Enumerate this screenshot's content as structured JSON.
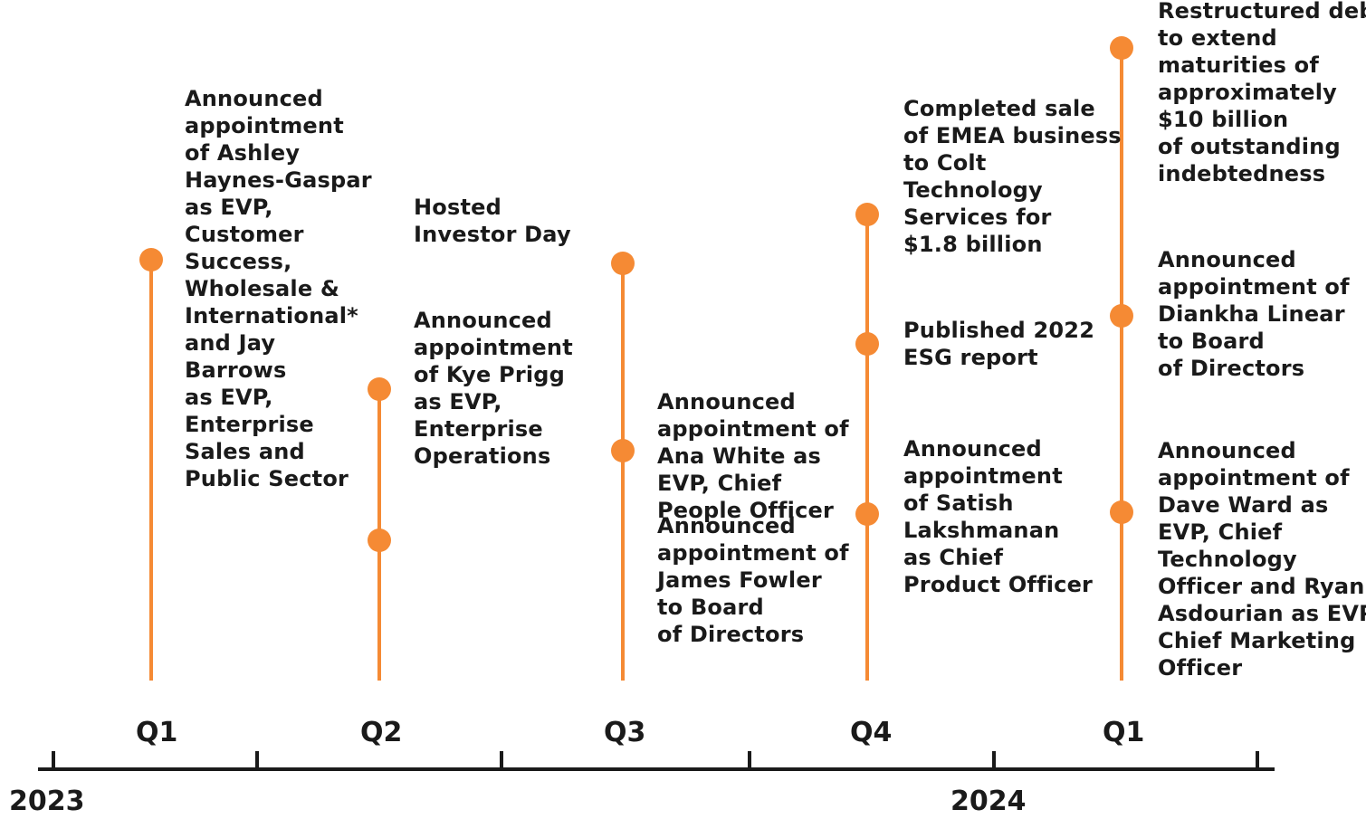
{
  "accent_color": "#F58A34",
  "axis_color": "#1a1a1a",
  "years": [
    "2023",
    "2024"
  ],
  "quarters": [
    "Q1",
    "Q2",
    "Q3",
    "Q4",
    "Q1"
  ],
  "events": [
    {
      "quarter_index": 0,
      "lines": [
        "Announced",
        "appointment",
        "of Ashley",
        "Haynes-Gaspar",
        "as EVP,",
        "Customer",
        "Success,",
        "Wholesale &",
        "International*",
        "and Jay",
        "Barrows",
        "as EVP,",
        "Enterprise",
        "Sales and",
        "Public Sector"
      ]
    },
    {
      "quarter_index": 1,
      "lines": [
        "Announced",
        "appointment",
        "of Kye Prigg",
        "as EVP,",
        "Enterprise",
        "Operations"
      ]
    },
    {
      "quarter_index": 1,
      "lines": [
        "Hosted",
        "Investor Day"
      ]
    },
    {
      "quarter_index": 2,
      "lines": [
        "Announced",
        "appointment of",
        "Ana White as",
        "EVP, Chief",
        "People Officer"
      ]
    },
    {
      "quarter_index": 2,
      "lines": [
        "Announced",
        "appointment of",
        "James Fowler",
        "to Board",
        "of Directors"
      ]
    },
    {
      "quarter_index": 3,
      "lines": [
        "Completed sale",
        "of EMEA business",
        "to Colt",
        "Technology",
        "Services for",
        "$1.8 billion"
      ]
    },
    {
      "quarter_index": 3,
      "lines": [
        "Published 2022",
        "ESG report"
      ]
    },
    {
      "quarter_index": 3,
      "lines": [
        "Announced",
        "appointment",
        "of Satish",
        "Lakshmanan",
        "as Chief",
        "Product Officer"
      ]
    },
    {
      "quarter_index": 4,
      "lines": [
        "Restructured debt",
        "to extend",
        "maturities of",
        "approximately",
        "$10 billion",
        "of outstanding",
        "indebtedness"
      ]
    },
    {
      "quarter_index": 4,
      "lines": [
        "Announced",
        "appointment of",
        "Diankha Linear",
        "to Board",
        "of Directors"
      ]
    },
    {
      "quarter_index": 4,
      "lines": [
        "Announced",
        "appointment of",
        "Dave Ward as",
        "EVP, Chief",
        "Technology",
        "Officer and Ryan",
        "Asdourian as EVP,",
        "Chief Marketing",
        "Officer"
      ]
    }
  ]
}
